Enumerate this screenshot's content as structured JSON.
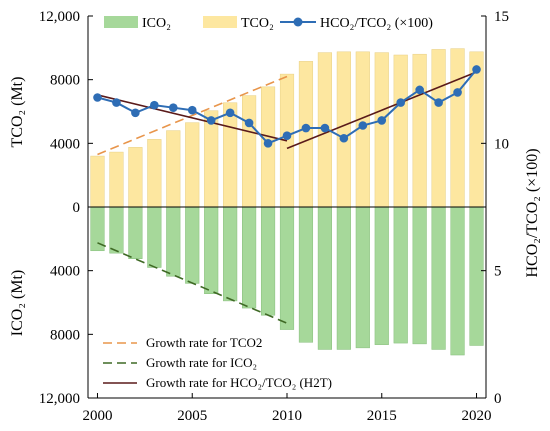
{
  "chart_data": {
    "type": "bar",
    "x": [
      2000,
      2001,
      2002,
      2003,
      2004,
      2005,
      2006,
      2007,
      2008,
      2009,
      2010,
      2011,
      2012,
      2013,
      2014,
      2015,
      2016,
      2017,
      2018,
      2019,
      2020
    ],
    "xticks": [
      {
        "value": 2000,
        "label": "2000"
      },
      {
        "value": 2005,
        "label": "2005"
      },
      {
        "value": 2010,
        "label": "2010"
      },
      {
        "value": 2015,
        "label": "2015"
      },
      {
        "value": 2020,
        "label": "2020"
      }
    ],
    "series": [
      {
        "name": "TCO₂",
        "type": "bar",
        "axis": "left-up",
        "color": "#fde7a0",
        "values": [
          3200,
          3450,
          3750,
          4250,
          4800,
          5300,
          6050,
          6550,
          7000,
          7550,
          8350,
          9150,
          9700,
          9750,
          9750,
          9700,
          9550,
          9600,
          9900,
          9950,
          9750
        ]
      },
      {
        "name": "ICO₂",
        "type": "bar",
        "axis": "left-down",
        "color": "#a6d89a",
        "values": [
          2750,
          2900,
          3250,
          3800,
          4350,
          4800,
          5450,
          5900,
          6350,
          6800,
          7700,
          8500,
          8950,
          8950,
          8850,
          8650,
          8550,
          8600,
          8950,
          9300,
          8700
        ]
      },
      {
        "name": "HCO₂/TCO₂ (×100)",
        "type": "line",
        "axis": "right",
        "color": "#2e6db5",
        "values": [
          11.8,
          11.6,
          11.2,
          11.5,
          11.4,
          11.3,
          10.9,
          11.2,
          10.8,
          10.0,
          10.3,
          10.6,
          10.6,
          10.2,
          10.7,
          10.9,
          11.6,
          12.1,
          11.6,
          12.0,
          12.9
        ]
      }
    ],
    "trends": [
      {
        "name": "Growth rate for TCO2",
        "style": "dashed",
        "color": "#e8954b",
        "axis": "left-up",
        "x": [
          2000,
          2010
        ],
        "y": [
          3300,
          8200
        ]
      },
      {
        "name": "Growth rate for ICO₂",
        "style": "dashed",
        "color": "#3f6a25",
        "axis": "left-down",
        "x": [
          2000,
          2010
        ],
        "y": [
          2250,
          7300
        ]
      },
      {
        "name": "Growth rate for HCO₂/TCO₂ (H2T)",
        "style": "solid",
        "color": "#5a1a1a",
        "axis": "right",
        "x": [
          2000,
          2010
        ],
        "y": [
          11.9,
          10.1
        ]
      },
      {
        "name": "",
        "style": "solid",
        "color": "#5a1a1a",
        "axis": "right",
        "x": [
          2010,
          2020
        ],
        "y": [
          9.8,
          12.8
        ]
      }
    ],
    "axes": {
      "x": {
        "range": [
          1999.5,
          2020.5
        ]
      },
      "left": {
        "label_top": "TCO₂ (Mt)",
        "label_bottom": "ICO₂ (Mt)",
        "range_up": [
          0,
          12000
        ],
        "range_down": [
          0,
          12000
        ],
        "ticks": [
          {
            "value": 12000,
            "side": "up",
            "label": "12,000"
          },
          {
            "value": 8000,
            "side": "up",
            "label": "8000"
          },
          {
            "value": 4000,
            "side": "up",
            "label": "4000"
          },
          {
            "value": 0,
            "side": "up",
            "label": "0"
          },
          {
            "value": 4000,
            "side": "down",
            "label": "4000"
          },
          {
            "value": 8000,
            "side": "down",
            "label": "8000"
          },
          {
            "value": 12000,
            "side": "down",
            "label": "12,000"
          }
        ]
      },
      "right": {
        "label": "HCO₂/TCO₂ (×100)",
        "range": [
          0,
          15
        ],
        "ticks": [
          {
            "value": 15,
            "label": "15"
          },
          {
            "value": 10,
            "label": "10"
          },
          {
            "value": 5,
            "label": "5"
          },
          {
            "value": 0,
            "label": "0"
          }
        ]
      }
    },
    "legend_top": {
      "placement": "top-center",
      "items": [
        "ICO₂",
        "TCO₂",
        "HCO₂/TCO₂ (×100)"
      ]
    },
    "legend_bottom": {
      "placement": "bottom-left",
      "items": [
        "Growth rate for TCO2",
        "Growth rate for ICO₂",
        "Growth rate for HCO₂/TCO₂ (H2T)"
      ]
    },
    "grid": false
  }
}
